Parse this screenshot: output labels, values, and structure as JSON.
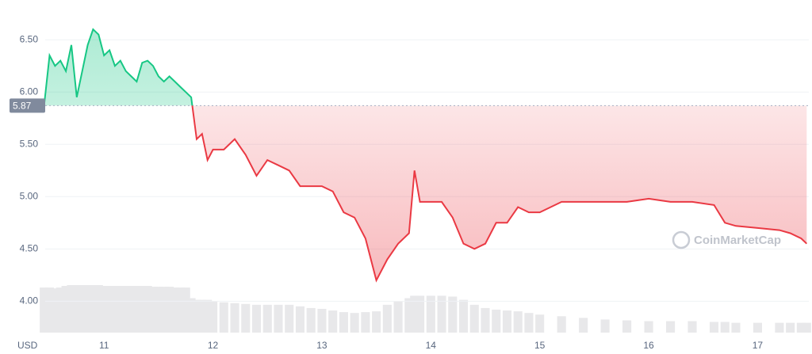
{
  "chart_data": {
    "type": "line",
    "currency_label": "USD",
    "watermark": "CoinMarketCap",
    "reference_value": 5.87,
    "x": [
      10.45,
      10.5,
      10.55,
      10.6,
      10.65,
      10.7,
      10.75,
      10.8,
      10.85,
      10.9,
      10.95,
      11.0,
      11.05,
      11.1,
      11.15,
      11.2,
      11.25,
      11.3,
      11.35,
      11.4,
      11.45,
      11.5,
      11.55,
      11.6,
      11.65,
      11.7,
      11.75,
      11.8,
      11.85,
      11.9,
      11.95,
      12.0,
      12.1,
      12.2,
      12.3,
      12.4,
      12.5,
      12.6,
      12.7,
      12.8,
      12.9,
      13.0,
      13.1,
      13.2,
      13.3,
      13.4,
      13.5,
      13.6,
      13.7,
      13.8,
      13.85,
      13.9,
      14.0,
      14.1,
      14.2,
      14.3,
      14.4,
      14.5,
      14.6,
      14.7,
      14.8,
      14.9,
      15.0,
      15.2,
      15.4,
      15.6,
      15.8,
      16.0,
      16.2,
      16.4,
      16.6,
      16.7,
      16.8,
      17.0,
      17.2,
      17.3,
      17.4,
      17.45
    ],
    "series": [
      {
        "name": "Price",
        "color_up": "#16c784",
        "color_down": "#ea3943",
        "values": [
          5.87,
          6.35,
          6.25,
          6.3,
          6.2,
          6.45,
          5.95,
          6.2,
          6.45,
          6.6,
          6.55,
          6.35,
          6.4,
          6.25,
          6.3,
          6.2,
          6.15,
          6.1,
          6.28,
          6.3,
          6.25,
          6.15,
          6.1,
          6.15,
          6.1,
          6.05,
          6.0,
          5.95,
          5.55,
          5.6,
          5.35,
          5.45,
          5.45,
          5.55,
          5.4,
          5.2,
          5.35,
          5.3,
          5.25,
          5.1,
          5.1,
          5.1,
          5.05,
          4.85,
          4.8,
          4.6,
          4.2,
          4.4,
          4.55,
          4.65,
          5.25,
          4.95,
          4.95,
          4.95,
          4.8,
          4.55,
          4.5,
          4.55,
          4.75,
          4.75,
          4.9,
          4.85,
          4.85,
          4.95,
          4.95,
          4.95,
          4.95,
          4.98,
          4.95,
          4.95,
          4.92,
          4.75,
          4.72,
          4.7,
          4.68,
          4.65,
          4.6,
          4.55
        ]
      },
      {
        "name": "Volume",
        "color": "#e8e8ea",
        "values": [
          55,
          55,
          54,
          55,
          57,
          58,
          58,
          58,
          58,
          58,
          58,
          57,
          57,
          57,
          57,
          57,
          57,
          57,
          57,
          57,
          56,
          56,
          56,
          56,
          55,
          55,
          55,
          42,
          40,
          40,
          40,
          38,
          37,
          36,
          35,
          34,
          34,
          34,
          34,
          32,
          30,
          29,
          27,
          25,
          24,
          25,
          26,
          34,
          38,
          42,
          45,
          45,
          45,
          45,
          44,
          40,
          34,
          30,
          28,
          27,
          26,
          24,
          22,
          20,
          18,
          16,
          15,
          14,
          14,
          14,
          13,
          13,
          12,
          12,
          12,
          12,
          12,
          12
        ]
      }
    ],
    "xlim": [
      10.46,
      17.47
    ],
    "xticks": [
      11,
      12,
      13,
      14,
      15,
      16,
      17
    ],
    "ylim": [
      3.7,
      6.88
    ],
    "yticks": [
      {
        "value": 4,
        "label": "4.00"
      },
      {
        "value": 4.5,
        "label": "4.50"
      },
      {
        "value": 5,
        "label": "5.00"
      },
      {
        "value": 5.5,
        "label": "5.50"
      },
      {
        "value": 6,
        "label": "6.00"
      },
      {
        "value": 6.5,
        "label": "6.50"
      }
    ],
    "grid": true
  }
}
